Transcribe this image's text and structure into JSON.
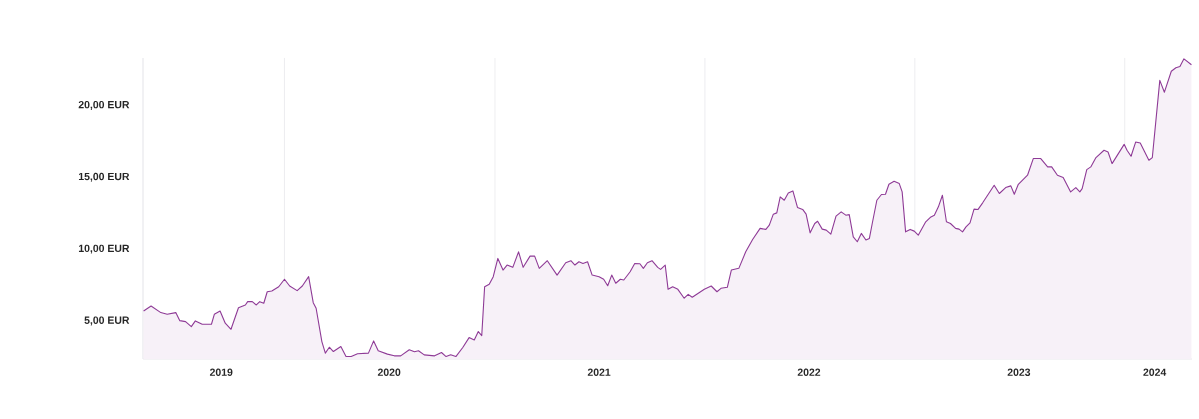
{
  "chart_data": {
    "type": "area",
    "color": "#8e3a96",
    "grid": "x",
    "marker": "none",
    "xlim": [
      "2019-04-30",
      "2024-04-27"
    ],
    "ylim": [
      2.35,
      23.3
    ],
    "xticks": [
      {
        "value": "2019-09-13",
        "label": "2019"
      },
      {
        "value": "2020-01-01",
        "label": null
      },
      {
        "value": "2020-07-01",
        "label": "2020"
      },
      {
        "value": "2021-01-01",
        "label": null
      },
      {
        "value": "2021-07-01",
        "label": "2021"
      },
      {
        "value": "2022-01-01",
        "label": null
      },
      {
        "value": "2022-07-01",
        "label": "2022"
      },
      {
        "value": "2023-01-01",
        "label": null
      },
      {
        "value": "2023-07-01",
        "label": "2023"
      },
      {
        "value": "2024-01-01",
        "label": null
      },
      {
        "value": "2024-02-22",
        "label": "2024"
      }
    ],
    "yticks": [
      {
        "value": 5,
        "label": "5,00 EUR"
      },
      {
        "value": 10,
        "label": "10,00 EUR"
      },
      {
        "value": 15,
        "label": "15,00 EUR"
      },
      {
        "value": 20,
        "label": "20,00 EUR"
      }
    ],
    "x": [
      "2019-05-01",
      "2019-05-14",
      "2019-05-31",
      "2019-06-11",
      "2019-06-26",
      "2019-07-03",
      "2019-07-13",
      "2019-07-23",
      "2019-07-30",
      "2019-08-11",
      "2019-08-27",
      "2019-09-01",
      "2019-09-11",
      "2019-09-20",
      "2019-09-30",
      "2019-10-13",
      "2019-10-25",
      "2019-10-29",
      "2019-11-06",
      "2019-11-13",
      "2019-11-19",
      "2019-11-26",
      "2019-12-02",
      "2019-12-10",
      "2019-12-22",
      "2020-01-01",
      "2020-01-10",
      "2020-01-23",
      "2020-02-01",
      "2020-02-12",
      "2020-02-20",
      "2020-02-25",
      "2020-03-06",
      "2020-03-12",
      "2020-03-19",
      "2020-03-26",
      "2020-04-08",
      "2020-04-17",
      "2020-04-26",
      "2020-05-07",
      "2020-05-26",
      "2020-06-04",
      "2020-06-12",
      "2020-06-28",
      "2020-07-10",
      "2020-07-21",
      "2020-08-05",
      "2020-08-14",
      "2020-08-21",
      "2020-08-31",
      "2020-09-18",
      "2020-09-30",
      "2020-10-08",
      "2020-10-16",
      "2020-10-25",
      "2020-11-06",
      "2020-11-17",
      "2020-11-26",
      "2020-12-03",
      "2020-12-09",
      "2020-12-14",
      "2020-12-22",
      "2020-12-29",
      "2021-01-06",
      "2021-01-15",
      "2021-01-22",
      "2021-02-01",
      "2021-02-11",
      "2021-02-19",
      "2021-03-03",
      "2021-03-11",
      "2021-03-19",
      "2021-04-02",
      "2021-04-19",
      "2021-05-04",
      "2021-05-13",
      "2021-05-20",
      "2021-05-27",
      "2021-06-03",
      "2021-06-11",
      "2021-06-19",
      "2021-07-01",
      "2021-07-09",
      "2021-07-16",
      "2021-07-23",
      "2021-07-30",
      "2021-08-07",
      "2021-08-13",
      "2021-08-24",
      "2021-09-01",
      "2021-09-10",
      "2021-09-16",
      "2021-09-23",
      "2021-10-01",
      "2021-10-11",
      "2021-10-16",
      "2021-10-24",
      "2021-10-29",
      "2021-11-06",
      "2021-11-15",
      "2021-11-26",
      "2021-12-03",
      "2021-12-10",
      "2021-12-31",
      "2022-01-12",
      "2022-01-22",
      "2022-01-29",
      "2022-02-09",
      "2022-02-16",
      "2022-03-01",
      "2022-03-13",
      "2022-03-25",
      "2022-04-07",
      "2022-04-17",
      "2022-04-23",
      "2022-04-30",
      "2022-05-06",
      "2022-05-12",
      "2022-05-19",
      "2022-05-26",
      "2022-06-03",
      "2022-06-11",
      "2022-06-20",
      "2022-06-26",
      "2022-07-03",
      "2022-07-11",
      "2022-07-16",
      "2022-07-24",
      "2022-07-31",
      "2022-08-08",
      "2022-08-17",
      "2022-08-26",
      "2022-09-03",
      "2022-09-09",
      "2022-09-16",
      "2022-09-23",
      "2022-09-30",
      "2022-10-08",
      "2022-10-14",
      "2022-10-19",
      "2022-10-27",
      "2022-11-04",
      "2022-11-11",
      "2022-11-17",
      "2022-11-26",
      "2022-12-05",
      "2022-12-10",
      "2022-12-16",
      "2022-12-24",
      "2022-12-31",
      "2023-01-07",
      "2023-01-20",
      "2023-01-29",
      "2023-02-04",
      "2023-02-11",
      "2023-02-18",
      "2023-02-25",
      "2023-03-04",
      "2023-03-13",
      "2023-03-19",
      "2023-03-25",
      "2023-03-31",
      "2023-04-07",
      "2023-04-14",
      "2023-04-21",
      "2023-04-29",
      "2023-05-19",
      "2023-05-28",
      "2023-06-08",
      "2023-06-17",
      "2023-06-23",
      "2023-06-30",
      "2023-07-16",
      "2023-07-26",
      "2023-08-08",
      "2023-08-20",
      "2023-08-27",
      "2023-09-06",
      "2023-09-16",
      "2023-09-29",
      "2023-10-08",
      "2023-10-15",
      "2023-10-19",
      "2023-10-27",
      "2023-11-03",
      "2023-11-12",
      "2023-11-26",
      "2023-12-03",
      "2023-12-10",
      "2023-12-31",
      "2024-01-05",
      "2024-01-12",
      "2024-01-20",
      "2024-01-28",
      "2024-02-12",
      "2024-02-18",
      "2024-03-02",
      "2024-03-10",
      "2024-03-22",
      "2024-03-30",
      "2024-04-06",
      "2024-04-13",
      "2024-04-26"
    ],
    "values": [
      5.69,
      6.04,
      5.58,
      5.46,
      5.58,
      5.02,
      4.95,
      4.6,
      5.0,
      4.77,
      4.77,
      5.46,
      5.69,
      4.84,
      4.42,
      5.92,
      6.11,
      6.34,
      6.34,
      6.11,
      6.34,
      6.23,
      7.03,
      7.08,
      7.38,
      7.9,
      7.43,
      7.11,
      7.43,
      8.08,
      6.27,
      5.88,
      3.56,
      2.76,
      3.17,
      2.87,
      3.22,
      2.52,
      2.52,
      2.71,
      2.76,
      3.61,
      2.92,
      2.69,
      2.57,
      2.57,
      2.99,
      2.85,
      2.92,
      2.64,
      2.57,
      2.8,
      2.52,
      2.64,
      2.52,
      3.15,
      3.84,
      3.68,
      4.26,
      3.98,
      7.38,
      7.55,
      8.08,
      9.35,
      8.54,
      8.89,
      8.73,
      9.81,
      8.73,
      9.51,
      9.51,
      8.66,
      9.19,
      8.19,
      9.05,
      9.19,
      8.89,
      9.12,
      9.0,
      9.12,
      8.19,
      8.08,
      7.9,
      7.45,
      8.19,
      7.62,
      7.9,
      7.85,
      8.42,
      9.0,
      8.98,
      8.66,
      9.05,
      9.19,
      8.73,
      8.59,
      8.89,
      7.2,
      7.38,
      7.2,
      6.58,
      6.85,
      6.65,
      7.2,
      7.43,
      7.03,
      7.27,
      7.34,
      8.54,
      8.66,
      9.81,
      10.67,
      11.44,
      11.37,
      11.67,
      12.43,
      12.52,
      13.63,
      13.4,
      13.91,
      14.05,
      12.9,
      12.76,
      12.43,
      11.13,
      11.78,
      11.94,
      11.39,
      11.32,
      11.04,
      12.29,
      12.59,
      12.36,
      12.4,
      10.85,
      10.51,
      11.09,
      10.63,
      10.74,
      11.78,
      13.4,
      13.8,
      13.82,
      14.51,
      14.72,
      14.56,
      13.98,
      11.2,
      11.37,
      11.25,
      10.97,
      11.9,
      12.24,
      12.36,
      12.94,
      13.75,
      11.9,
      11.78,
      11.44,
      11.39,
      11.2,
      11.55,
      11.83,
      12.78,
      12.76,
      13.22,
      14.44,
      13.87,
      14.28,
      14.4,
      13.82,
      14.51,
      15.14,
      16.3,
      16.3,
      15.72,
      15.72,
      15.14,
      14.98,
      13.98,
      14.28,
      13.98,
      14.21,
      15.53,
      15.72,
      16.37,
      16.88,
      16.76,
      15.95,
      17.29,
      16.88,
      16.46,
      17.45,
      17.38,
      16.18,
      16.37,
      21.74,
      20.92,
      22.38,
      22.62,
      22.71,
      23.24,
      22.83
    ]
  }
}
